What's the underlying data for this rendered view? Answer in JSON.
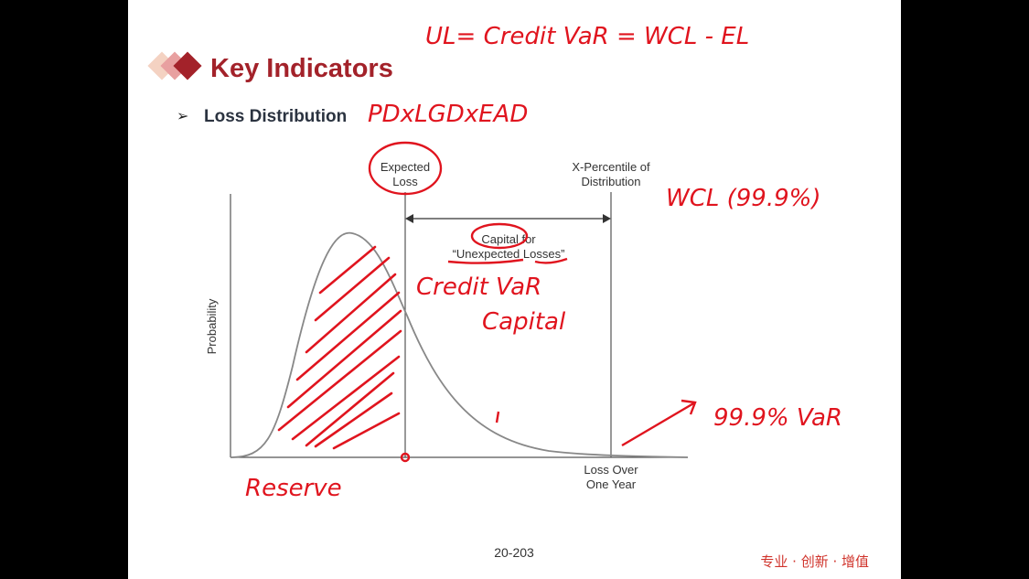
{
  "header": {
    "title": "Key Indicators",
    "bullet": "Loss Distribution"
  },
  "diagram": {
    "expected_loss": [
      "Expected",
      "Loss"
    ],
    "percentile": [
      "X-Percentile of",
      "Distribution"
    ],
    "capital": [
      "Capital for",
      "“Unexpected Losses”"
    ],
    "y_label": "Probability",
    "x_label": [
      "Loss Over",
      "One Year"
    ]
  },
  "annotations": [
    "UL= Credit VaR = WCL - EL",
    "PDxLGDxEAD",
    "WCL (99.9%)",
    "Credit VaR",
    "Capital",
    "99.9% VaR",
    "Reserve"
  ],
  "footer": {
    "page": "20-203",
    "slogan": "专业 · 创新 · 增值"
  }
}
